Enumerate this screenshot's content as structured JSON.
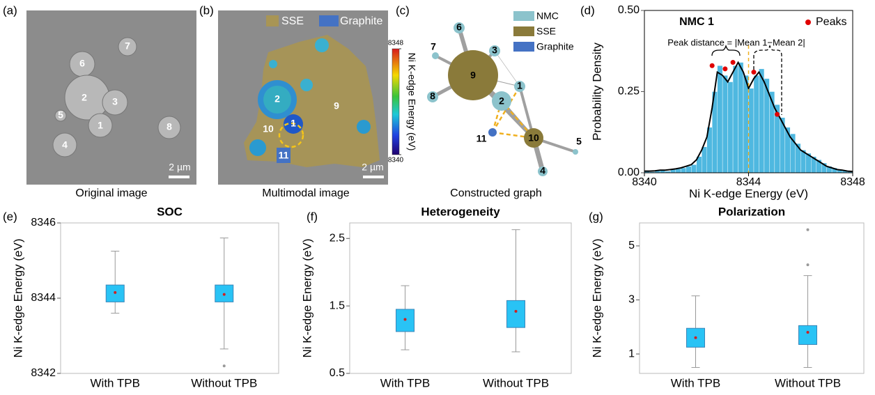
{
  "panel_labels": [
    "(a)",
    "(b)",
    "(c)",
    "(d)",
    "(e)",
    "(f)",
    "(g)"
  ],
  "image_a": {
    "labels": [
      "7",
      "6",
      "2",
      "3",
      "5",
      "1",
      "4",
      "8"
    ],
    "scale_bar": "2 µm",
    "caption": "Original image"
  },
  "image_b": {
    "legend": [
      "SSE",
      "Graphite"
    ],
    "labels": [
      "2",
      "9",
      "10",
      "1",
      "11"
    ],
    "scale_bar": "2 µm",
    "caption": "Multimodal image",
    "colorbar": {
      "title": "Ni K-edge Energy (eV)",
      "lim": [
        8340,
        8348
      ],
      "ticks": [
        8340,
        8348
      ]
    }
  },
  "graph_c": {
    "legend": [
      "NMC",
      "SSE",
      "Graphite"
    ],
    "nodes": [
      "1",
      "2",
      "3",
      "4",
      "5",
      "6",
      "7",
      "8",
      "9",
      "10",
      "11"
    ],
    "caption": "Constructed graph"
  },
  "chart_data": [
    {
      "type": "histogram",
      "title": "NMC 1",
      "xlabel": "Ni K-edge Energy (eV)",
      "ylabel": "Probability Density",
      "color": "#4fb8e0",
      "bins": [
        8340,
        8340.2,
        8340.4,
        8340.6,
        8340.8,
        8341,
        8341.2,
        8341.4,
        8341.6,
        8341.8,
        8342,
        8342.2,
        8342.4,
        8342.6,
        8342.8,
        8343,
        8343.2,
        8343.4,
        8343.6,
        8343.8,
        8344,
        8344.2,
        8344.4,
        8344.6,
        8344.8,
        8345,
        8345.2,
        8345.4,
        8345.6,
        8345.8,
        8346,
        8346.2,
        8346.4,
        8346.6,
        8346.8,
        8347,
        8347.2,
        8347.4,
        8347.6,
        8347.8,
        8348
      ],
      "values": [
        0.005,
        0.003,
        0.008,
        0.01,
        0.005,
        0.01,
        0.012,
        0.015,
        0.02,
        0.025,
        0.05,
        0.08,
        0.14,
        0.25,
        0.33,
        0.3,
        0.28,
        0.33,
        0.34,
        0.3,
        0.26,
        0.3,
        0.32,
        0.29,
        0.25,
        0.21,
        0.17,
        0.14,
        0.12,
        0.09,
        0.07,
        0.06,
        0.05,
        0.04,
        0.03,
        0.02,
        0.015,
        0.01,
        0.008,
        0.005
      ],
      "kde": [
        0.005,
        0.005,
        0.006,
        0.008,
        0.008,
        0.01,
        0.012,
        0.015,
        0.02,
        0.025,
        0.04,
        0.07,
        0.11,
        0.2,
        0.31,
        0.3,
        0.28,
        0.31,
        0.34,
        0.31,
        0.26,
        0.29,
        0.31,
        0.28,
        0.24,
        0.2,
        0.17,
        0.14,
        0.11,
        0.09,
        0.07,
        0.06,
        0.05,
        0.04,
        0.03,
        0.02,
        0.015,
        0.01,
        0.008,
        0.005,
        0.004
      ],
      "peaks": {
        "name": "Peaks",
        "color": "#e00000",
        "x": [
          8342.6,
          8343.1,
          8343.4,
          8344.2,
          8345.1
        ],
        "values": [
          0.33,
          0.32,
          0.34,
          0.31,
          0.18
        ]
      },
      "reference_x": 8344,
      "annotation": "Peak distance = |Mean 1−Mean 2|",
      "xlim": [
        8340,
        8348
      ],
      "xticks": [
        8340,
        8344,
        8348
      ],
      "ylim": [
        0,
        0.5
      ],
      "yticks": [
        {
          "value": 0,
          "label": "0.00"
        },
        {
          "value": 0.25,
          "label": "0.25"
        },
        {
          "value": 0.5,
          "label": "0.50"
        }
      ]
    },
    {
      "type": "box",
      "title": "SOC",
      "ylabel": "Ni K-edge Energy (eV)",
      "color": "#29c3f5",
      "categories": [
        "With TPB",
        "Without TPB"
      ],
      "boxes": [
        {
          "low": 8343.6,
          "q1": 8343.9,
          "mean": 8344.15,
          "q3": 8344.35,
          "high": 8345.25,
          "outliers": []
        },
        {
          "low": 8342.65,
          "q1": 8343.9,
          "mean": 8344.1,
          "q3": 8344.35,
          "high": 8345.6,
          "outliers": [
            8342.2
          ]
        }
      ],
      "ylim": [
        8342,
        8346
      ],
      "yticks": [
        8342,
        8344,
        8346
      ]
    },
    {
      "type": "box",
      "title": "Heterogeneity",
      "ylabel": "Ni K-edge Energy (eV)",
      "color": "#29c3f5",
      "categories": [
        "With TPB",
        "Without TPB"
      ],
      "boxes": [
        {
          "low": 0.85,
          "q1": 1.12,
          "mean": 1.3,
          "q3": 1.45,
          "high": 1.8,
          "outliers": []
        },
        {
          "low": 0.82,
          "q1": 1.18,
          "mean": 1.42,
          "q3": 1.58,
          "high": 2.63,
          "outliers": []
        }
      ],
      "ylim": [
        0.5,
        2.73
      ],
      "yticks": [
        0.5,
        1.5,
        2.5
      ]
    },
    {
      "type": "box",
      "title": "Polarization",
      "ylabel": "Ni K-edge Energy (eV)",
      "color": "#29c3f5",
      "categories": [
        "With TPB",
        "Without TPB"
      ],
      "boxes": [
        {
          "low": 0.5,
          "q1": 1.25,
          "mean": 1.6,
          "q3": 1.95,
          "high": 3.15,
          "outliers": []
        },
        {
          "low": 0.5,
          "q1": 1.35,
          "mean": 1.8,
          "q3": 2.05,
          "high": 3.9,
          "outliers": [
            4.3,
            5.6
          ]
        }
      ],
      "ylim": [
        0.28,
        5.85
      ],
      "yticks": [
        1,
        3,
        5
      ]
    }
  ]
}
